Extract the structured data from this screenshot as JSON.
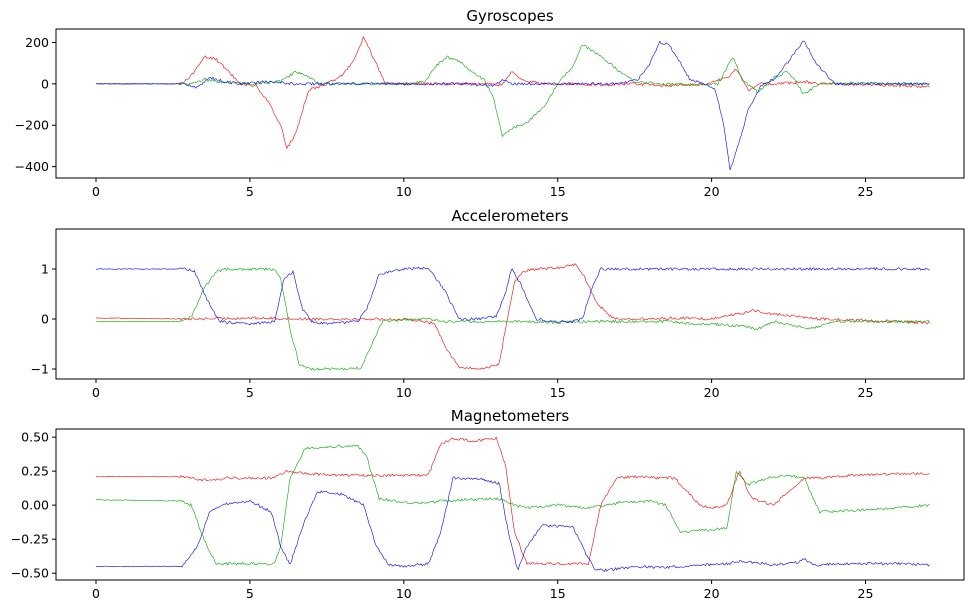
{
  "figure": {
    "titles": [
      "Gyroscopes",
      "Accelerometers",
      "Magnetometers"
    ]
  },
  "colors": {
    "x": "#ff0000",
    "y": "#00aa00",
    "z": "#0000ff"
  },
  "chart_data": [
    {
      "type": "line",
      "title": "Gyroscopes",
      "xlabel": "",
      "ylabel": "",
      "xlim": [
        -1.3,
        28.2
      ],
      "ylim": [
        -455,
        265
      ],
      "xticks": [
        0,
        5,
        10,
        15,
        20,
        25
      ],
      "yticks": [
        -400,
        -200,
        0,
        200
      ],
      "grid": false,
      "series": [
        {
          "color": "#ff0000",
          "x": [
            0,
            2.8,
            3.1,
            3.5,
            3.9,
            4.3,
            4.7,
            5.2,
            5.6,
            6.0,
            6.2,
            6.5,
            6.9,
            7.5,
            8.0,
            8.4,
            8.7,
            9.0,
            9.4,
            10.5,
            11.5,
            12.5,
            13.2,
            13.5,
            13.8,
            14.5,
            15.5,
            16.5,
            17.5,
            18.5,
            19.2,
            19.8,
            20.5,
            20.8,
            21.2,
            21.6,
            22.2,
            23.0,
            23.6,
            24.5,
            25.5,
            27.1
          ],
          "y": [
            0,
            0,
            40,
            130,
            120,
            60,
            0,
            -10,
            -90,
            -200,
            -310,
            -240,
            -30,
            0,
            40,
            120,
            230,
            130,
            0,
            0,
            0,
            0,
            -5,
            60,
            20,
            0,
            0,
            -5,
            0,
            -10,
            -5,
            0,
            30,
            70,
            -30,
            0,
            0,
            10,
            0,
            0,
            -5,
            -15
          ]
        },
        {
          "color": "#00aa00",
          "x": [
            0,
            3.0,
            3.5,
            4.0,
            5.0,
            6.0,
            6.5,
            6.9,
            7.3,
            8.5,
            10.0,
            10.7,
            11.0,
            11.4,
            11.8,
            12.2,
            12.6,
            12.9,
            13.2,
            13.6,
            14.0,
            14.6,
            15.0,
            15.5,
            15.8,
            16.2,
            16.6,
            17.0,
            17.5,
            18.5,
            19.5,
            20.2,
            20.7,
            21.0,
            21.5,
            22.0,
            22.5,
            23.0,
            23.5,
            24.5,
            25.5,
            27.1
          ],
          "y": [
            0,
            0,
            20,
            10,
            0,
            10,
            60,
            30,
            0,
            0,
            0,
            10,
            80,
            130,
            110,
            60,
            20,
            -60,
            -250,
            -210,
            -190,
            -100,
            0,
            90,
            190,
            150,
            110,
            60,
            10,
            0,
            -5,
            0,
            130,
            20,
            -40,
            30,
            60,
            -50,
            0,
            5,
            0,
            0
          ]
        },
        {
          "color": "#0000ff",
          "x": [
            0,
            2.9,
            3.3,
            3.7,
            4.2,
            4.8,
            5.5,
            6.5,
            7.5,
            9.0,
            10.5,
            12.0,
            12.9,
            13.2,
            13.5,
            14.0,
            15.0,
            16.0,
            17.0,
            17.6,
            18.0,
            18.3,
            18.6,
            18.9,
            19.3,
            19.7,
            20.1,
            20.4,
            20.6,
            20.9,
            21.2,
            21.6,
            22.0,
            22.4,
            22.7,
            23.0,
            23.4,
            24.0,
            25.0,
            26.0,
            27.1
          ],
          "y": [
            0,
            0,
            -20,
            30,
            10,
            0,
            10,
            0,
            0,
            0,
            0,
            0,
            -10,
            20,
            0,
            0,
            0,
            0,
            0,
            20,
            100,
            200,
            190,
            120,
            20,
            0,
            -20,
            -200,
            -420,
            -280,
            -120,
            -10,
            20,
            90,
            150,
            210,
            100,
            0,
            0,
            0,
            0
          ]
        }
      ]
    },
    {
      "type": "line",
      "title": "Accelerometers",
      "xlabel": "",
      "ylabel": "",
      "xlim": [
        -1.3,
        28.2
      ],
      "ylim": [
        -1.2,
        1.8
      ],
      "xticks": [
        0,
        5,
        10,
        15,
        20,
        25
      ],
      "yticks": [
        -1,
        0,
        1
      ],
      "grid": false,
      "series": [
        {
          "color": "#ff0000",
          "x": [
            0,
            3,
            5,
            7,
            9,
            10.5,
            11.0,
            11.4,
            11.8,
            12.5,
            13.1,
            13.3,
            13.6,
            13.9,
            14.3,
            15.0,
            15.6,
            15.9,
            16.3,
            16.7,
            17.0,
            18.0,
            19.0,
            20.0,
            20.5,
            21.0,
            21.3,
            22.0,
            22.8,
            23.5,
            24.5,
            26.0,
            27.1
          ],
          "y": [
            0.02,
            0.0,
            0.02,
            0.0,
            0.0,
            -0.02,
            -0.1,
            -0.6,
            -0.97,
            -1.0,
            -0.9,
            -0.2,
            0.75,
            0.95,
            1.0,
            1.02,
            1.1,
            0.8,
            0.3,
            0.05,
            0.0,
            0.0,
            0.02,
            0.0,
            0.08,
            0.1,
            0.18,
            0.1,
            0.05,
            0.0,
            -0.02,
            -0.05,
            -0.08
          ]
        },
        {
          "color": "#00aa00",
          "x": [
            0,
            2.8,
            3.1,
            3.5,
            3.9,
            4.3,
            5.0,
            5.8,
            6.0,
            6.3,
            6.6,
            7.0,
            8.0,
            8.6,
            8.9,
            9.3,
            10.0,
            10.8,
            11.3,
            12.0,
            13.0,
            14.0,
            15.0,
            16.0,
            17.0,
            18.5,
            19.5,
            20.0,
            21.0,
            21.5,
            22.0,
            22.5,
            23.2,
            24.0,
            25.0,
            27.1
          ],
          "y": [
            -0.05,
            -0.05,
            0.05,
            0.6,
            0.95,
            1.0,
            1.0,
            1.0,
            0.8,
            -0.2,
            -0.9,
            -1.0,
            -1.0,
            -0.98,
            -0.6,
            -0.05,
            -0.02,
            0.0,
            -0.05,
            -0.05,
            -0.05,
            -0.05,
            -0.07,
            -0.05,
            -0.05,
            -0.05,
            -0.1,
            -0.1,
            -0.15,
            -0.2,
            -0.05,
            -0.1,
            -0.2,
            -0.05,
            -0.05,
            -0.05
          ]
        },
        {
          "color": "#0000ff",
          "x": [
            0,
            2.9,
            3.2,
            3.6,
            4.0,
            5.0,
            5.8,
            6.1,
            6.4,
            6.7,
            7.0,
            7.5,
            8.5,
            8.8,
            9.2,
            10.0,
            10.8,
            11.3,
            11.8,
            12.5,
            13.0,
            13.3,
            13.5,
            13.8,
            14.3,
            14.8,
            15.5,
            15.8,
            16.1,
            16.4,
            17.0,
            18.0,
            19.0,
            20.0,
            21.0,
            22.0,
            23.0,
            24.0,
            25.0,
            26.0,
            27.1
          ],
          "y": [
            1.0,
            1.0,
            0.95,
            0.4,
            -0.05,
            -0.1,
            -0.05,
            0.8,
            0.95,
            0.2,
            -0.05,
            -0.1,
            -0.05,
            0.2,
            0.9,
            1.0,
            1.02,
            0.6,
            0.0,
            0.0,
            0.05,
            0.5,
            1.0,
            0.7,
            0.0,
            -0.05,
            -0.05,
            0.0,
            0.6,
            1.0,
            1.0,
            1.0,
            1.0,
            1.0,
            1.0,
            1.0,
            1.0,
            1.0,
            1.0,
            1.0,
            1.0
          ]
        }
      ]
    },
    {
      "type": "line",
      "title": "Magnetometers",
      "xlabel": "",
      "ylabel": "",
      "xlim": [
        -1.3,
        28.2
      ],
      "ylim": [
        -0.55,
        0.56
      ],
      "xticks": [
        0,
        5,
        10,
        15,
        20,
        25
      ],
      "yticks": [
        -0.5,
        -0.25,
        0.0,
        0.25,
        0.5
      ],
      "grid": false,
      "series": [
        {
          "color": "#ff0000",
          "x": [
            0,
            2.8,
            3.3,
            3.8,
            4.3,
            5.8,
            6.2,
            7.0,
            8.0,
            9.0,
            10.0,
            10.8,
            11.2,
            11.6,
            12.3,
            13.0,
            13.3,
            13.6,
            14.0,
            15.0,
            16.0,
            16.4,
            16.9,
            17.5,
            18.2,
            18.8,
            19.2,
            19.6,
            20.0,
            20.5,
            20.9,
            21.3,
            22.0,
            22.5,
            23.0,
            23.5,
            24.5,
            25.5,
            27.1
          ],
          "y": [
            0.21,
            0.21,
            0.19,
            0.18,
            0.2,
            0.2,
            0.25,
            0.23,
            0.22,
            0.22,
            0.22,
            0.22,
            0.45,
            0.49,
            0.47,
            0.49,
            0.3,
            -0.2,
            -0.43,
            -0.43,
            -0.43,
            0.0,
            0.2,
            0.21,
            0.2,
            0.2,
            0.1,
            0.0,
            -0.02,
            0.0,
            0.25,
            0.05,
            0.0,
            0.1,
            0.2,
            0.2,
            0.22,
            0.23,
            0.23
          ]
        },
        {
          "color": "#00aa00",
          "x": [
            0,
            2.8,
            3.1,
            3.5,
            3.9,
            4.5,
            5.8,
            6.0,
            6.3,
            6.8,
            7.5,
            8.5,
            8.8,
            9.2,
            10.0,
            10.8,
            11.2,
            12.0,
            13.0,
            13.6,
            14.0,
            15.0,
            16.0,
            17.0,
            18.0,
            18.5,
            19.0,
            19.5,
            20.0,
            20.5,
            20.8,
            21.2,
            21.8,
            22.5,
            23.0,
            23.5,
            24.5,
            26.0,
            27.1
          ],
          "y": [
            0.04,
            0.03,
            0.0,
            -0.25,
            -0.43,
            -0.43,
            -0.43,
            -0.3,
            0.2,
            0.42,
            0.43,
            0.44,
            0.35,
            0.05,
            0.02,
            0.02,
            0.03,
            0.04,
            0.05,
            0.0,
            -0.02,
            0.0,
            -0.02,
            0.02,
            0.03,
            0.0,
            -0.2,
            -0.19,
            -0.18,
            -0.17,
            0.25,
            0.15,
            0.2,
            0.22,
            0.2,
            -0.05,
            -0.04,
            -0.02,
            0.0
          ]
        },
        {
          "color": "#0000ff",
          "x": [
            0,
            2.8,
            3.3,
            3.7,
            4.2,
            5.0,
            5.7,
            6.0,
            6.3,
            6.8,
            7.2,
            8.0,
            8.7,
            9.1,
            9.5,
            10.0,
            10.8,
            11.2,
            11.6,
            12.5,
            13.1,
            13.4,
            13.7,
            14.0,
            14.5,
            15.5,
            15.9,
            16.2,
            16.5,
            17.5,
            18.5,
            19.5,
            20.5,
            21.0,
            22.0,
            22.8,
            23.0,
            23.3,
            24.5,
            26.0,
            27.1
          ],
          "y": [
            -0.45,
            -0.45,
            -0.3,
            -0.05,
            0.01,
            0.03,
            -0.05,
            -0.3,
            -0.44,
            -0.1,
            0.1,
            0.08,
            0.0,
            -0.3,
            -0.44,
            -0.45,
            -0.43,
            -0.2,
            0.2,
            0.19,
            0.16,
            -0.2,
            -0.48,
            -0.3,
            -0.15,
            -0.16,
            -0.35,
            -0.47,
            -0.48,
            -0.45,
            -0.46,
            -0.44,
            -0.43,
            -0.41,
            -0.44,
            -0.42,
            -0.39,
            -0.44,
            -0.43,
            -0.43,
            -0.44
          ]
        }
      ]
    }
  ]
}
